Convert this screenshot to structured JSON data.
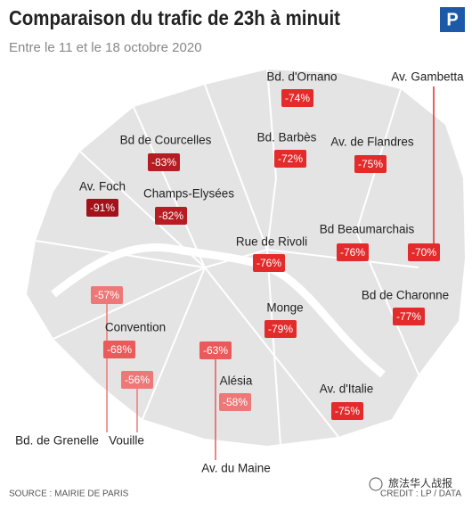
{
  "header": {
    "title": "Comparaison du trafic de 23h à minuit",
    "subtitle": "Entre le 11 et le 18 octobre 2020",
    "logo": "P"
  },
  "streets": [
    {
      "name": "Bd. d'Ornano",
      "label": "-74%",
      "color": "#e32b2b"
    },
    {
      "name": "Av. Gambetta",
      "label": "-70%",
      "color": "#e32b2b"
    },
    {
      "name": "Bd de Courcelles",
      "label": "-83%",
      "color": "#b51d22"
    },
    {
      "name": "Bd. Barbès",
      "label": "-72%",
      "color": "#e32b2b"
    },
    {
      "name": "Av. de Flandres",
      "label": "-75%",
      "color": "#e32b2b"
    },
    {
      "name": "Av. Foch",
      "label": "-91%",
      "color": "#a3121a"
    },
    {
      "name": "Champs-Elysées",
      "label": "-82%",
      "color": "#b51d22"
    },
    {
      "name": "Bd Beaumarchais",
      "label": "-76%",
      "color": "#e32b2b"
    },
    {
      "name": "Rue de Rivoli",
      "label": "-76%",
      "color": "#e32b2b"
    },
    {
      "name": "Bd de Charonne",
      "label": "-77%",
      "color": "#e32b2b"
    },
    {
      "name": "Bd. de Grenelle",
      "label": "-57%",
      "color": "#ee7777"
    },
    {
      "name": "Convention",
      "label": "-68%",
      "color": "#ea5a5a"
    },
    {
      "name": "Monge",
      "label": "-79%",
      "color": "#e32b2b"
    },
    {
      "name": "Av. du Maine",
      "label": "-63%",
      "color": "#ea5a5a"
    },
    {
      "name": "Vouille",
      "label": "-56%",
      "color": "#ee7777"
    },
    {
      "name": "Alésia",
      "label": "-58%",
      "color": "#ee7777"
    },
    {
      "name": "Av. d'Italie",
      "label": "-75%",
      "color": "#e32b2b"
    }
  ],
  "footer": {
    "source": "SOURCE : MAIRIE DE PARIS",
    "credit": "CREDIT : LP / DATA",
    "watermark": "旅法华人战报"
  }
}
